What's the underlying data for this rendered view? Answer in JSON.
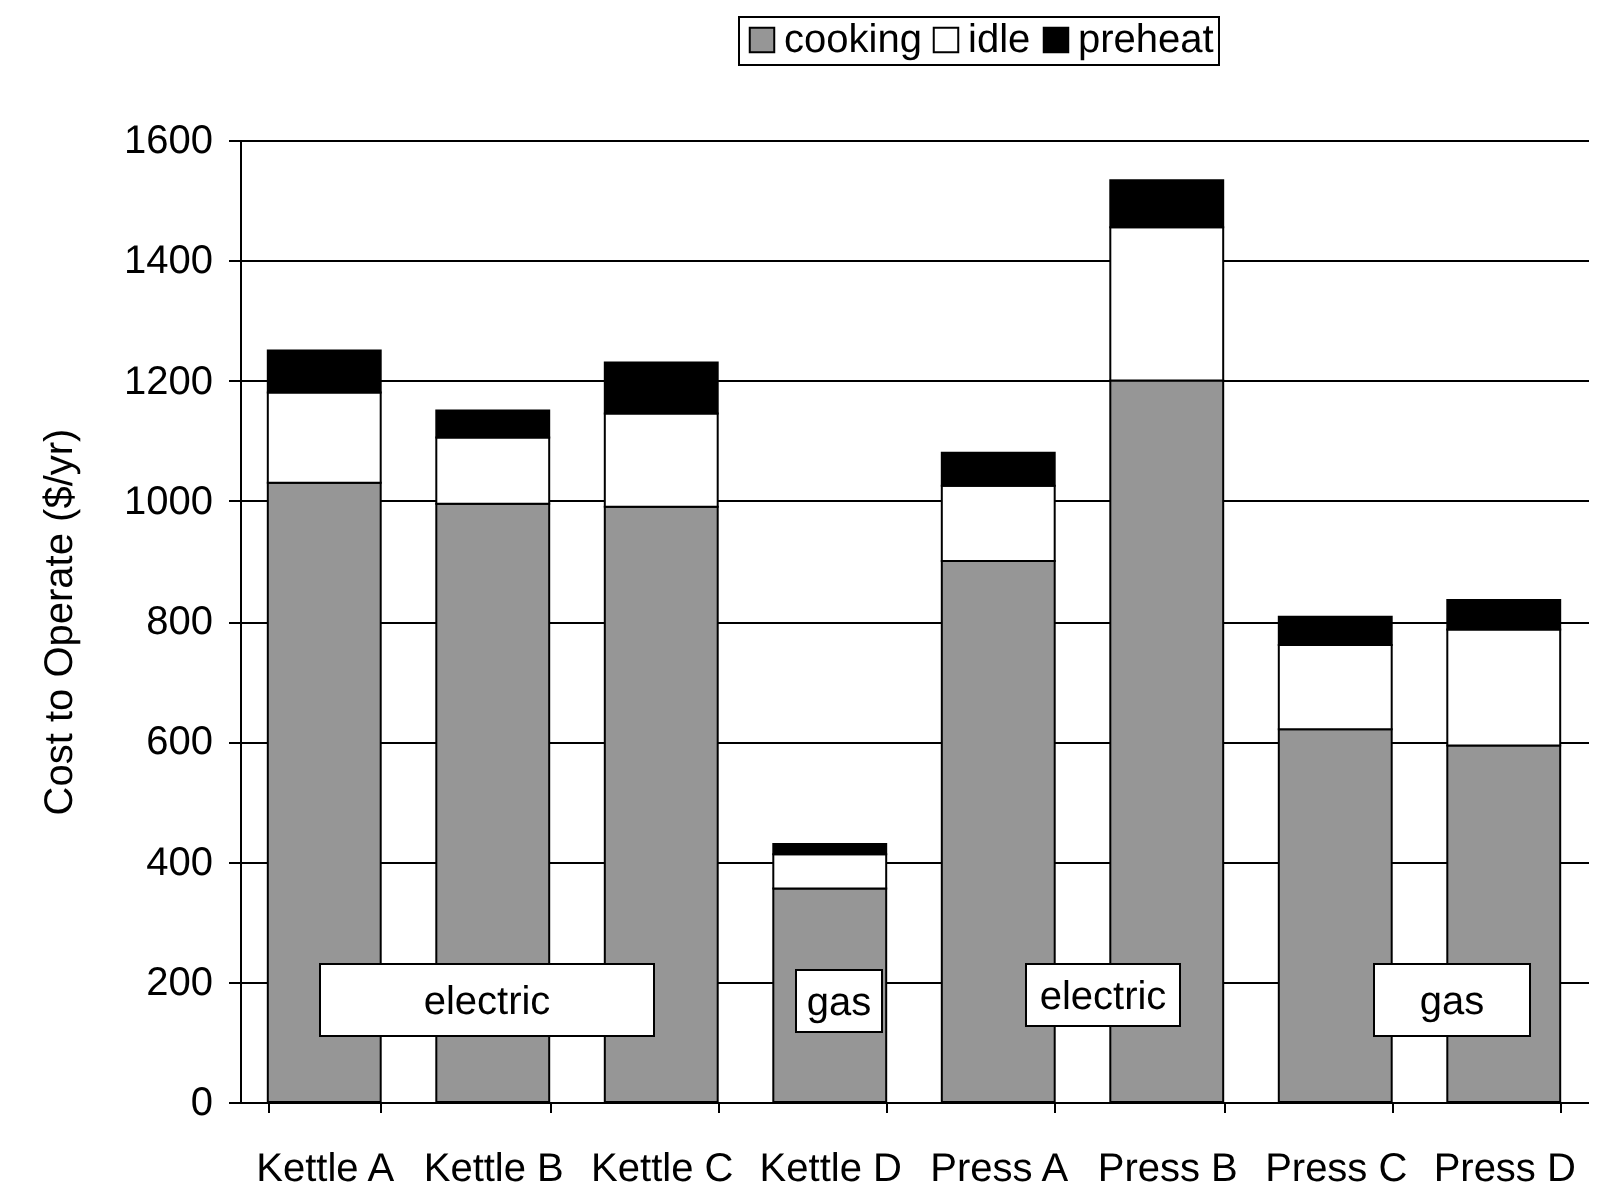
{
  "chart_data": {
    "type": "bar",
    "stacked": true,
    "categories": [
      "Kettle A",
      "Kettle B",
      "Kettle C",
      "Kettle D",
      "Press A",
      "Press B",
      "Press C",
      "Press D"
    ],
    "series": [
      {
        "name": "cooking",
        "color": "#969696",
        "values": [
          1030,
          995,
          990,
          355,
          900,
          1200,
          620,
          593
        ]
      },
      {
        "name": "idle",
        "color": "#ffffff",
        "values": [
          150,
          110,
          155,
          57,
          125,
          255,
          140,
          193
        ]
      },
      {
        "name": "preheat",
        "color": "#000000",
        "values": [
          70,
          45,
          85,
          17,
          55,
          78,
          47,
          49
        ]
      }
    ],
    "ylabel": "Cost to Operate ($/yr)",
    "ylim": [
      0,
      1600
    ],
    "yticks": [
      0,
      200,
      400,
      600,
      800,
      1000,
      1200,
      1400,
      1600
    ],
    "grid": "y",
    "legend": "top",
    "annotations": [
      "electric",
      "gas",
      "electric",
      "gas"
    ]
  }
}
